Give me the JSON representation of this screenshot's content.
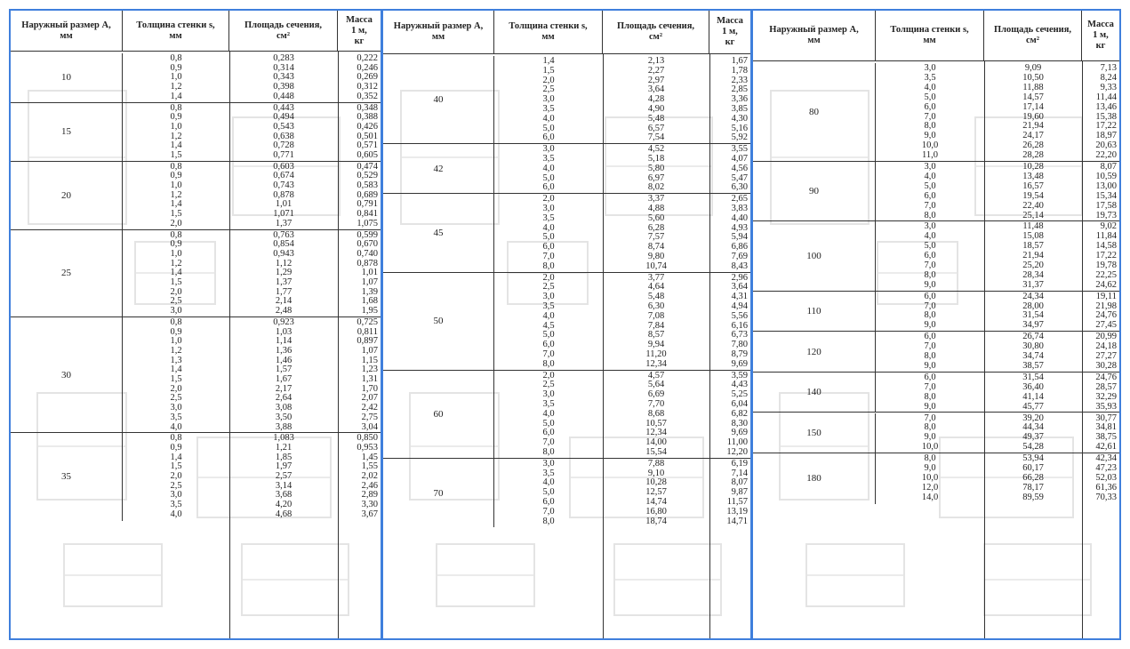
{
  "headers": {
    "size": "Наружный размер A,\nмм",
    "wall": "Толщина стенки s,\nмм",
    "area": "Площадь сечения,\nсм²",
    "mass": "Масса\n1 м,\nкг"
  },
  "panels": [
    {
      "groups": [
        {
          "a": "10",
          "rows": [
            [
              "0,8",
              "0,283",
              "0,222"
            ],
            [
              "0,9",
              "0,314",
              "0,246"
            ],
            [
              "1,0",
              "0,343",
              "0,269"
            ],
            [
              "1,2",
              "0,398",
              "0,312"
            ],
            [
              "1,4",
              "0,448",
              "0,352"
            ]
          ]
        },
        {
          "a": "15",
          "rows": [
            [
              "0,8",
              "0,443",
              "0,348"
            ],
            [
              "0,9",
              "0,494",
              "0,388"
            ],
            [
              "1,0",
              "0,543",
              "0,426"
            ],
            [
              "1,2",
              "0,638",
              "0,501"
            ],
            [
              "1,4",
              "0,728",
              "0,571"
            ],
            [
              "1,5",
              "0,771",
              "0,605"
            ]
          ]
        },
        {
          "a": "20",
          "rows": [
            [
              "0,8",
              "0,603",
              "0,474"
            ],
            [
              "0,9",
              "0,674",
              "0,529"
            ],
            [
              "1,0",
              "0,743",
              "0,583"
            ],
            [
              "1,2",
              "0,878",
              "0,689"
            ],
            [
              "1,4",
              "1,01",
              "0,791"
            ],
            [
              "1,5",
              "1,071",
              "0,841"
            ],
            [
              "2,0",
              "1,37",
              "1,075"
            ]
          ]
        },
        {
          "a": "25",
          "rows": [
            [
              "0,8",
              "0,763",
              "0,599"
            ],
            [
              "0,9",
              "0,854",
              "0,670"
            ],
            [
              "1,0",
              "0,943",
              "0,740"
            ],
            [
              "1,2",
              "1,12",
              "0,878"
            ],
            [
              "1,4",
              "1,29",
              "1,01"
            ],
            [
              "1,5",
              "1,37",
              "1,07"
            ],
            [
              "2,0",
              "1,77",
              "1,39"
            ],
            [
              "2,5",
              "2,14",
              "1,68"
            ],
            [
              "3,0",
              "2,48",
              "1,95"
            ]
          ]
        },
        {
          "a": "30",
          "rows": [
            [
              "0,8",
              "0,923",
              "0,725"
            ],
            [
              "0,9",
              "1,03",
              "0,811"
            ],
            [
              "1,0",
              "1,14",
              "0,897"
            ],
            [
              "1,2",
              "1,36",
              "1,07"
            ],
            [
              "1,3",
              "1,46",
              "1,15"
            ],
            [
              "1,4",
              "1,57",
              "1,23"
            ],
            [
              "1,5",
              "1,67",
              "1,31"
            ],
            [
              "2,0",
              "2,17",
              "1,70"
            ],
            [
              "2,5",
              "2,64",
              "2,07"
            ],
            [
              "3,0",
              "3,08",
              "2,42"
            ],
            [
              "3,5",
              "3,50",
              "2,75"
            ],
            [
              "4,0",
              "3,88",
              "3,04"
            ]
          ]
        },
        {
          "a": "35",
          "rows": [
            [
              "0,8",
              "1,083",
              "0,850"
            ],
            [
              "0,9",
              "1,21",
              "0,953"
            ],
            [
              "1,4",
              "1,85",
              "1,45"
            ],
            [
              "1,5",
              "1,97",
              "1,55"
            ],
            [
              "2,0",
              "2,57",
              "2,02"
            ],
            [
              "2,5",
              "3,14",
              "2,46"
            ],
            [
              "3,0",
              "3,68",
              "2,89"
            ],
            [
              "3,5",
              "4,20",
              "3,30"
            ],
            [
              "4,0",
              "4,68",
              "3,67"
            ]
          ]
        }
      ]
    },
    {
      "groups": [
        {
          "a": "40",
          "rows": [
            [
              "1,4",
              "2,13",
              "1,67"
            ],
            [
              "1,5",
              "2,27",
              "1,78"
            ],
            [
              "2,0",
              "2,97",
              "2,33"
            ],
            [
              "2,5",
              "3,64",
              "2,85"
            ],
            [
              "3,0",
              "4,28",
              "3,36"
            ],
            [
              "3,5",
              "4,90",
              "3,85"
            ],
            [
              "4,0",
              "5,48",
              "4,30"
            ],
            [
              "5,0",
              "6,57",
              "5,16"
            ],
            [
              "6,0",
              "7,54",
              "5,92"
            ]
          ]
        },
        {
          "a": "42",
          "rows": [
            [
              "3,0",
              "4,52",
              "3,55"
            ],
            [
              "3,5",
              "5,18",
              "4,07"
            ],
            [
              "4,0",
              "5,80",
              "4,56"
            ],
            [
              "5,0",
              "6,97",
              "5,47"
            ],
            [
              "6,0",
              "8,02",
              "6,30"
            ]
          ]
        },
        {
          "a": "45",
          "rows": [
            [
              "2,0",
              "3,37",
              "2,65"
            ],
            [
              "3,0",
              "4,88",
              "3,83"
            ],
            [
              "3,5",
              "5,60",
              "4,40"
            ],
            [
              "4,0",
              "6,28",
              "4,93"
            ],
            [
              "5,0",
              "7,57",
              "5,94"
            ],
            [
              "6,0",
              "8,74",
              "6,86"
            ],
            [
              "7,0",
              "9,80",
              "7,69"
            ],
            [
              "8,0",
              "10,74",
              "8,43"
            ]
          ]
        },
        {
          "a": "50",
          "rows": [
            [
              "2,0",
              "3,77",
              "2,96"
            ],
            [
              "2,5",
              "4,64",
              "3,64"
            ],
            [
              "3,0",
              "5,48",
              "4,31"
            ],
            [
              "3,5",
              "6,30",
              "4,94"
            ],
            [
              "4,0",
              "7,08",
              "5,56"
            ],
            [
              "4,5",
              "7,84",
              "6,16"
            ],
            [
              "5,0",
              "8,57",
              "6,73"
            ],
            [
              "6,0",
              "9,94",
              "7,80"
            ],
            [
              "7,0",
              "11,20",
              "8,79"
            ],
            [
              "8,0",
              "12,34",
              "9,69"
            ]
          ]
        },
        {
          "a": "60",
          "rows": [
            [
              "2,0",
              "4,57",
              "3,59"
            ],
            [
              "2,5",
              "5,64",
              "4,43"
            ],
            [
              "3,0",
              "6,69",
              "5,25"
            ],
            [
              "3,5",
              "7,70",
              "6,04"
            ],
            [
              "4,0",
              "8,68",
              "6,82"
            ],
            [
              "5,0",
              "10,57",
              "8,30"
            ],
            [
              "6,0",
              "12,34",
              "9,69"
            ],
            [
              "7,0",
              "14,00",
              "11,00"
            ],
            [
              "8,0",
              "15,54",
              "12,20"
            ]
          ]
        },
        {
          "a": "70",
          "rows": [
            [
              "3,0",
              "7,88",
              "6,19"
            ],
            [
              "3,5",
              "9,10",
              "7,14"
            ],
            [
              "4,0",
              "10,28",
              "8,07"
            ],
            [
              "5,0",
              "12,57",
              "9,87"
            ],
            [
              "6,0",
              "14,74",
              "11,57"
            ],
            [
              "7,0",
              "16,80",
              "13,19"
            ],
            [
              "8,0",
              "18,74",
              "14,71"
            ]
          ]
        }
      ]
    },
    {
      "groups": [
        {
          "a": "80",
          "rows": [
            [
              "3,0",
              "9,09",
              "7,13"
            ],
            [
              "3,5",
              "10,50",
              "8,24"
            ],
            [
              "4,0",
              "11,88",
              "9,33"
            ],
            [
              "5,0",
              "14,57",
              "11,44"
            ],
            [
              "6,0",
              "17,14",
              "13,46"
            ],
            [
              "7,0",
              "19,60",
              "15,38"
            ],
            [
              "8,0",
              "21,94",
              "17,22"
            ],
            [
              "9,0",
              "24,17",
              "18,97"
            ],
            [
              "10,0",
              "26,28",
              "20,63"
            ],
            [
              "11,0",
              "28,28",
              "22,20"
            ]
          ]
        },
        {
          "a": "90",
          "rows": [
            [
              "3,0",
              "10,28",
              "8,07"
            ],
            [
              "4,0",
              "13,48",
              "10,59"
            ],
            [
              "5,0",
              "16,57",
              "13,00"
            ],
            [
              "6,0",
              "19,54",
              "15,34"
            ],
            [
              "7,0",
              "22,40",
              "17,58"
            ],
            [
              "8,0",
              "25,14",
              "19,73"
            ]
          ]
        },
        {
          "a": "100",
          "rows": [
            [
              "3,0",
              "11,48",
              "9,02"
            ],
            [
              "4,0",
              "15,08",
              "11,84"
            ],
            [
              "5,0",
              "18,57",
              "14,58"
            ],
            [
              "6,0",
              "21,94",
              "17,22"
            ],
            [
              "7,0",
              "25,20",
              "19,78"
            ],
            [
              "8,0",
              "28,34",
              "22,25"
            ],
            [
              "9,0",
              "31,37",
              "24,62"
            ]
          ]
        },
        {
          "a": "110",
          "rows": [
            [
              "6,0",
              "24,34",
              "19,11"
            ],
            [
              "7,0",
              "28,00",
              "21,98"
            ],
            [
              "8,0",
              "31,54",
              "24,76"
            ],
            [
              "9,0",
              "34,97",
              "27,45"
            ]
          ]
        },
        {
          "a": "120",
          "rows": [
            [
              "6,0",
              "26,74",
              "20,99"
            ],
            [
              "7,0",
              "30,80",
              "24,18"
            ],
            [
              "8,0",
              "34,74",
              "27,27"
            ],
            [
              "9,0",
              "38,57",
              "30,28"
            ]
          ]
        },
        {
          "a": "140",
          "rows": [
            [
              "6,0",
              "31,54",
              "24,76"
            ],
            [
              "7,0",
              "36,40",
              "28,57"
            ],
            [
              "8,0",
              "41,14",
              "32,29"
            ],
            [
              "9,0",
              "45,77",
              "35,93"
            ]
          ]
        },
        {
          "a": "150",
          "rows": [
            [
              "7,0",
              "39,20",
              "30,77"
            ],
            [
              "8,0",
              "44,34",
              "34,81"
            ],
            [
              "9,0",
              "49,37",
              "38,75"
            ],
            [
              "10,0",
              "54,28",
              "42,61"
            ]
          ]
        },
        {
          "a": "180",
          "rows": [
            [
              "8,0",
              "53,94",
              "42,34"
            ],
            [
              "9,0",
              "60,17",
              "47,23"
            ],
            [
              "10,0",
              "66,28",
              "52,03"
            ],
            [
              "12,0",
              "78,17",
              "61,36"
            ],
            [
              "14,0",
              "89,59",
              "70,33"
            ]
          ]
        }
      ]
    }
  ]
}
